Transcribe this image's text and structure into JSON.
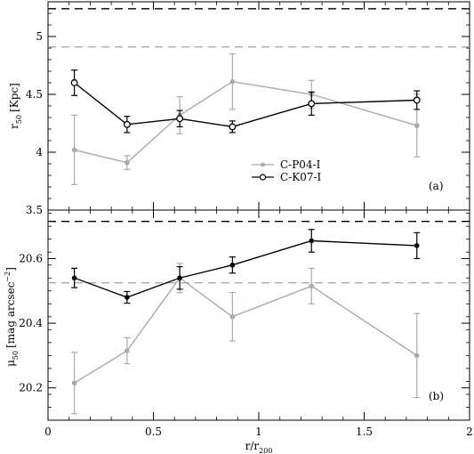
{
  "chart_data": [
    {
      "id": "top",
      "type": "line",
      "panel_label": "(a)",
      "ylabel_main": "r",
      "ylabel_sub": "50",
      "ylabel_unit": "[Kpc]",
      "xlim": [
        0,
        2
      ],
      "ylim": [
        3.5,
        5.3
      ],
      "yticks": [
        3.5,
        4,
        4.5,
        5
      ],
      "ytick_labels": [
        "3.5",
        "4",
        "4.5",
        "5"
      ],
      "xtick_labels": [],
      "hlines": [
        {
          "y": 5.24,
          "color": "#000000"
        },
        {
          "y": 4.91,
          "color": "#aaaaaa"
        }
      ],
      "legend": {
        "position": "center",
        "entries": [
          {
            "label": "C-P04-I",
            "color": "#aaaaaa"
          },
          {
            "label": "C-K07-I",
            "color": "#000000"
          }
        ]
      },
      "series": [
        {
          "name": "C-P04-I",
          "color": "#aaaaaa",
          "marker": "filled",
          "x": [
            0.125,
            0.375,
            0.625,
            0.875,
            1.25,
            1.75
          ],
          "y": [
            4.02,
            3.91,
            4.32,
            4.61,
            4.5,
            4.23
          ],
          "err": [
            0.3,
            0.06,
            0.16,
            0.24,
            0.12,
            0.27
          ]
        },
        {
          "name": "C-K07-I",
          "color": "#000000",
          "marker": "open",
          "x": [
            0.125,
            0.375,
            0.625,
            0.875,
            1.25,
            1.75
          ],
          "y": [
            4.6,
            4.24,
            4.29,
            4.22,
            4.42,
            4.45
          ],
          "err": [
            0.11,
            0.07,
            0.07,
            0.05,
            0.1,
            0.08
          ]
        }
      ]
    },
    {
      "id": "bottom",
      "type": "line",
      "panel_label": "(b)",
      "ylabel_main": "μ",
      "ylabel_sub": "50",
      "ylabel_unit": "[mag arcsec",
      "ylabel_sup": "−2",
      "ylabel_close": "]",
      "xlim": [
        0,
        2
      ],
      "ylim": [
        20.1,
        20.75
      ],
      "yticks": [
        20.2,
        20.4,
        20.6
      ],
      "ytick_labels": [
        "20.2",
        "20.4",
        "20.6"
      ],
      "xticks": [
        0,
        0.5,
        1,
        1.5,
        2
      ],
      "xtick_labels": [
        "0",
        "0.5",
        "1",
        "1.5",
        "2"
      ],
      "xlabel_main": "r/r",
      "xlabel_sub": "200",
      "hlines": [
        {
          "y": 20.715,
          "color": "#000000"
        },
        {
          "y": 20.525,
          "color": "#aaaaaa"
        }
      ],
      "series": [
        {
          "name": "C-P04-I",
          "color": "#aaaaaa",
          "marker": "filled",
          "x": [
            0.125,
            0.375,
            0.625,
            0.875,
            1.25,
            1.75
          ],
          "y": [
            20.215,
            20.315,
            20.54,
            20.42,
            20.515,
            20.3
          ],
          "err": [
            0.095,
            0.04,
            0.045,
            0.075,
            0.055,
            0.13
          ]
        },
        {
          "name": "C-K07-I",
          "color": "#000000",
          "marker": "filled",
          "x": [
            0.125,
            0.375,
            0.625,
            0.875,
            1.25,
            1.75
          ],
          "y": [
            20.54,
            20.48,
            20.54,
            20.58,
            20.655,
            20.64
          ],
          "err": [
            0.03,
            0.018,
            0.035,
            0.025,
            0.035,
            0.04
          ]
        }
      ]
    }
  ]
}
